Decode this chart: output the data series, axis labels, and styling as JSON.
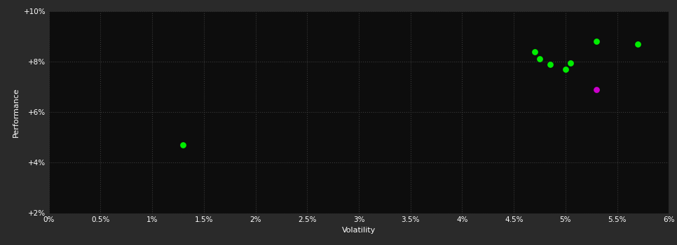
{
  "background_color": "#2a2a2a",
  "plot_bg_color": "#0d0d0d",
  "grid_color": "#3a3a3a",
  "text_color": "#ffffff",
  "xlabel": "Volatility",
  "ylabel": "Performance",
  "xlim": [
    0.0,
    0.06
  ],
  "ylim": [
    0.02,
    0.1
  ],
  "xticks": [
    0.0,
    0.005,
    0.01,
    0.015,
    0.02,
    0.025,
    0.03,
    0.035,
    0.04,
    0.045,
    0.05,
    0.055,
    0.06
  ],
  "yticks": [
    0.02,
    0.04,
    0.06,
    0.08,
    0.1
  ],
  "green_points": [
    [
      0.013,
      0.047
    ],
    [
      0.047,
      0.084
    ],
    [
      0.0475,
      0.081
    ],
    [
      0.0485,
      0.079
    ],
    [
      0.05,
      0.077
    ],
    [
      0.0505,
      0.0795
    ],
    [
      0.053,
      0.088
    ],
    [
      0.057,
      0.087
    ]
  ],
  "magenta_points": [
    [
      0.053,
      0.069
    ]
  ],
  "green_color": "#00ee00",
  "magenta_color": "#cc00cc",
  "marker_size": 28
}
